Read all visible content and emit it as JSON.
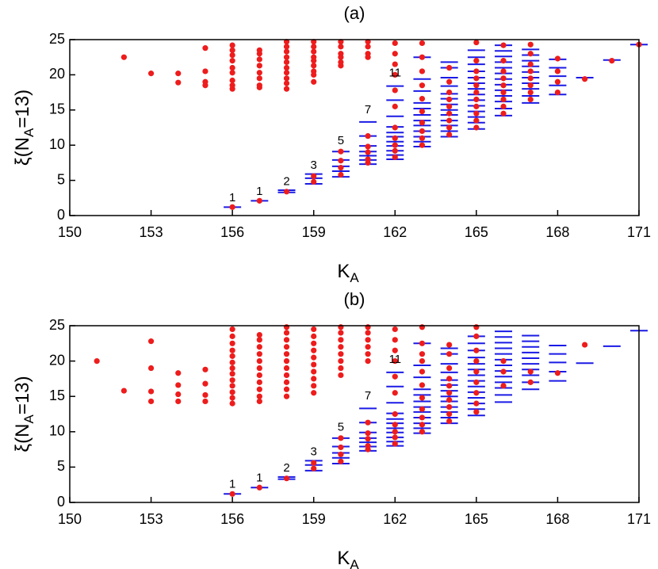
{
  "chart_data": [
    {
      "type": "scatter",
      "title": "(a)",
      "x_label": {
        "main": "K",
        "sub": "A"
      },
      "y_label": {
        "main": "ξ(N",
        "sub": "A",
        "tail": "=13)"
      },
      "xlim": [
        150,
        171
      ],
      "xticks": [
        150,
        153,
        156,
        159,
        162,
        165,
        168,
        171
      ],
      "ylim": [
        0,
        25
      ],
      "yticks": [
        0,
        5,
        10,
        15,
        20,
        25
      ],
      "series": [
        {
          "marker": "dash",
          "color": "#1a1ae6",
          "x": [
            156,
            157,
            158,
            159,
            160,
            161,
            162,
            163,
            164,
            165,
            166,
            167,
            168,
            169,
            170,
            171
          ],
          "values": [
            [
              1.2
            ],
            [
              2.1
            ],
            [
              3.3,
              3.6
            ],
            [
              4.5,
              5.3,
              5.9
            ],
            [
              5.5,
              6.3,
              7.0,
              7.9,
              9.1
            ],
            [
              7.3,
              7.9,
              8.5,
              9.1,
              9.9,
              11.3,
              13.3
            ],
            [
              8.0,
              8.6,
              9.2,
              9.9,
              10.5,
              11.2,
              11.8,
              12.6,
              14.1,
              16.4,
              18.4
            ],
            [
              9.8,
              10.5,
              11.2,
              12,
              12.8,
              13.5,
              14.3,
              15.2,
              16,
              17.7,
              19.4,
              22.5
            ],
            [
              11.2,
              12,
              12.8,
              13.5,
              14.3,
              15,
              15.8,
              16.6,
              17.3,
              18.4,
              19.6,
              21,
              21.8
            ],
            [
              12.3,
              13.2,
              14,
              14.8,
              15.6,
              16.4,
              17.2,
              18,
              18.8,
              19.6,
              20.5,
              21.5,
              22.5,
              23.5
            ],
            [
              14.2,
              15.2,
              16.2,
              17,
              17.8,
              18.6,
              19.4,
              20.2,
              21,
              21.8,
              22.6,
              23.4,
              24.2
            ],
            [
              16,
              17,
              18,
              18.8,
              19.6,
              20.4,
              21.2,
              22,
              22.8,
              23.6
            ],
            [
              17.2,
              18.5,
              19.8,
              21,
              22.2
            ],
            [
              19.6
            ],
            [
              22.1
            ],
            [
              24.3
            ]
          ]
        },
        {
          "marker": "circle",
          "color": "#ee1c1c",
          "x": [
            152,
            153,
            154,
            155,
            156,
            157,
            158,
            159,
            160,
            161,
            162,
            163,
            164,
            165,
            166,
            167,
            168,
            169,
            170,
            171
          ],
          "values": [
            [
              22.5
            ],
            [
              20.2
            ],
            [
              20.2,
              18.9
            ],
            [
              23.8,
              20.5,
              19,
              18.5
            ],
            [
              1.2,
              18,
              18.5,
              19.2,
              20.3,
              21,
              22,
              22.8,
              23.5,
              24.2
            ],
            [
              2.1,
              18.2,
              18.5,
              19.5,
              20.3,
              21.3,
              22.2,
              23,
              23.5
            ],
            [
              3.4,
              18,
              18.8,
              19.5,
              20.3,
              21,
              21.8,
              22.5,
              23.3,
              24,
              24.7
            ],
            [
              4.8,
              5.6,
              19,
              20,
              20.5,
              21.3,
              22,
              22.5,
              23.3,
              24,
              24.7
            ],
            [
              5.8,
              6.8,
              7.8,
              9.1,
              21.3,
              21.8,
              22.5,
              23,
              24,
              24.7
            ],
            [
              7.5,
              8,
              9,
              9.8,
              11.3,
              22.5,
              23,
              24,
              24.7
            ],
            [
              8.3,
              9.2,
              10,
              11,
              12.5,
              15.5,
              17.8,
              20,
              21.5,
              23,
              24.5
            ],
            [
              10,
              11,
              12,
              13.2,
              14.8,
              16.6,
              18.5,
              20.5,
              22.5,
              24.5
            ],
            [
              11.5,
              12.5,
              13.5,
              14.5,
              15.5,
              16.5,
              17.5,
              19,
              21
            ],
            [
              12.5,
              13.5,
              14.5,
              15.5,
              16.5,
              17.5,
              18.5,
              19.5,
              20.5,
              22,
              24.6
            ],
            [
              14.5,
              15.5,
              16.5,
              17.5,
              18.5,
              19.5,
              20.5,
              22,
              24.2
            ],
            [
              16.5,
              17.5,
              18.5,
              19.5,
              20.5,
              21.5,
              23,
              24.3
            ],
            [
              17.5,
              19,
              20.5,
              22.3
            ],
            [
              19.4
            ],
            [
              22
            ],
            [
              24.3
            ]
          ]
        }
      ],
      "annotations": [
        {
          "text": "1",
          "x": 156,
          "y": 2.5
        },
        {
          "text": "1",
          "x": 157,
          "y": 3.4
        },
        {
          "text": "2",
          "x": 158,
          "y": 4.8
        },
        {
          "text": "3",
          "x": 159,
          "y": 7.1
        },
        {
          "text": "5",
          "x": 160,
          "y": 10.6
        },
        {
          "text": "7",
          "x": 161,
          "y": 15
        },
        {
          "text": "11",
          "x": 162,
          "y": 20.2
        }
      ]
    },
    {
      "type": "scatter",
      "title": "(b)",
      "x_label": {
        "main": "K",
        "sub": "A"
      },
      "y_label": {
        "main": "ξ(N",
        "sub": "A",
        "tail": "=13)"
      },
      "xlim": [
        150,
        171
      ],
      "xticks": [
        150,
        153,
        156,
        159,
        162,
        165,
        168,
        171
      ],
      "ylim": [
        0,
        25
      ],
      "yticks": [
        0,
        5,
        10,
        15,
        20,
        25
      ],
      "series": [
        {
          "marker": "dash",
          "color": "#1a1ae6",
          "x": [
            156,
            157,
            158,
            159,
            160,
            161,
            162,
            163,
            164,
            165,
            166,
            167,
            168,
            169,
            170,
            171
          ],
          "values": [
            [
              1.2
            ],
            [
              2.1
            ],
            [
              3.3,
              3.6
            ],
            [
              4.5,
              5.3,
              5.9
            ],
            [
              5.5,
              6.3,
              7.0,
              7.9,
              9.1
            ],
            [
              7.3,
              7.9,
              8.5,
              9.1,
              9.9,
              11.3,
              13.3
            ],
            [
              8.0,
              8.6,
              9.2,
              9.9,
              10.5,
              11.2,
              11.8,
              12.6,
              14.1,
              16.4,
              18.4
            ],
            [
              9.8,
              10.5,
              11.2,
              12,
              12.8,
              13.5,
              14.3,
              15.2,
              16,
              17.7,
              19.4,
              22.5
            ],
            [
              11.2,
              12,
              12.8,
              13.5,
              14.3,
              15,
              15.8,
              16.6,
              17.3,
              18.4,
              19.6,
              21,
              21.8
            ],
            [
              12.3,
              13.2,
              14,
              14.8,
              15.6,
              16.4,
              17.2,
              18,
              18.8,
              19.6,
              20.5,
              21.5,
              22.5,
              23.5
            ],
            [
              14.2,
              15.2,
              16.2,
              17,
              17.8,
              18.6,
              19.4,
              20.2,
              21,
              21.8,
              22.6,
              23.4,
              24.2
            ],
            [
              16,
              17,
              18,
              18.8,
              19.6,
              20.4,
              21.2,
              22,
              22.8,
              23.6
            ],
            [
              17.2,
              18.5,
              19.8,
              21,
              22.2
            ],
            [
              19.7
            ],
            [
              22.1
            ],
            [
              24.3
            ]
          ]
        },
        {
          "marker": "circle",
          "color": "#ee1c1c",
          "x": [
            151,
            152,
            153,
            154,
            155,
            156,
            157,
            158,
            159,
            160,
            161,
            162,
            163,
            164,
            165,
            166,
            167,
            168,
            169
          ],
          "values": [
            [
              20
            ],
            [
              15.8
            ],
            [
              22.8,
              19,
              15.7,
              14.3
            ],
            [
              18.3,
              16.6,
              15.3,
              14.3
            ],
            [
              18.8,
              16.8,
              15.2,
              14.3
            ],
            [
              1.2,
              14,
              14.8,
              15.6,
              16.5,
              17.3,
              18.2,
              19,
              19.8,
              20.7,
              21.5,
              22.5,
              23.5,
              24.5
            ],
            [
              2.1,
              14.3,
              15,
              16,
              17,
              18,
              19,
              20,
              21,
              22,
              23,
              23.7
            ],
            [
              3.4,
              15,
              16,
              17,
              18,
              19,
              20,
              21,
              22,
              23,
              24,
              24.8
            ],
            [
              4.8,
              5.6,
              15.5,
              16.5,
              17.5,
              18.5,
              19.5,
              20.5,
              21.5,
              22.5,
              23.5,
              24.5
            ],
            [
              5.8,
              6.8,
              7.8,
              9.1,
              18,
              19,
              20,
              21,
              22,
              23,
              24,
              24.8
            ],
            [
              7.5,
              8,
              9,
              9.8,
              11.3,
              20,
              21,
              22,
              23,
              24,
              24.8
            ],
            [
              8.3,
              9.2,
              10,
              11,
              12.5,
              15.5,
              17.8,
              20,
              21.5,
              23,
              24.5
            ],
            [
              10,
              11,
              12,
              13.2,
              14.8,
              16.6,
              18.5,
              20,
              21,
              22.5,
              24.8
            ],
            [
              11.5,
              12.5,
              13.5,
              14.5,
              15.5,
              16.5,
              17.5,
              19,
              21,
              22.3
            ],
            [
              12.8,
              14,
              15.5,
              17,
              18.5,
              20,
              21.5,
              23.5,
              24.8
            ],
            [
              16.5,
              18.5,
              20
            ],
            [
              17,
              18.5
            ],
            [
              18.3
            ],
            [
              22.3
            ]
          ]
        }
      ],
      "annotations": [
        {
          "text": "1",
          "x": 156,
          "y": 2.5
        },
        {
          "text": "1",
          "x": 157,
          "y": 3.4
        },
        {
          "text": "2",
          "x": 158,
          "y": 4.8
        },
        {
          "text": "3",
          "x": 159,
          "y": 7.1
        },
        {
          "text": "5",
          "x": 160,
          "y": 10.6
        },
        {
          "text": "7",
          "x": 161,
          "y": 15
        },
        {
          "text": "11",
          "x": 162,
          "y": 20.2
        }
      ]
    }
  ]
}
